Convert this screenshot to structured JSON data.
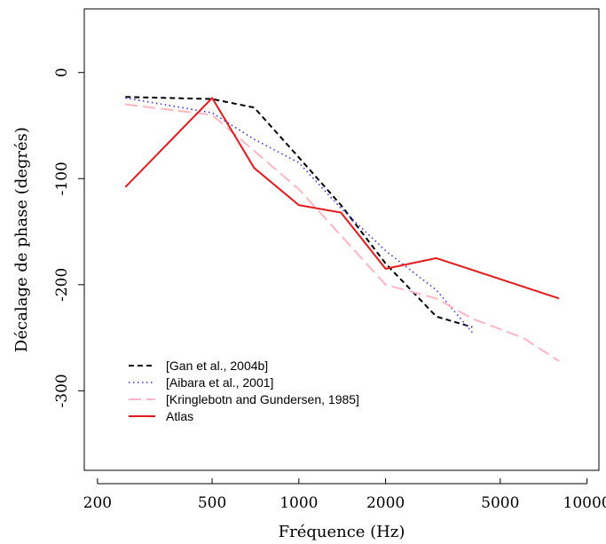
{
  "chart_data": {
    "type": "line",
    "title": "",
    "xlabel": "Fréquence (Hz)",
    "ylabel": "Décalage de phase (degrés)",
    "x_scale": "log",
    "xlim": [
      180,
      11000
    ],
    "ylim": [
      -375,
      60
    ],
    "x_ticks": [
      200,
      500,
      1000,
      2000,
      5000,
      10000
    ],
    "x_tick_labels": [
      "200",
      "500",
      "1000",
      "2000",
      "5000",
      "10000"
    ],
    "y_ticks": [
      0,
      -100,
      -200,
      -300
    ],
    "y_tick_labels": [
      "0",
      "-100",
      "-200",
      "-300"
    ],
    "grid": false,
    "legend_position": "bottom-left",
    "series": [
      {
        "name": "[Gan et al., 2004b]",
        "color": "#000000",
        "line_style": "dashed",
        "x": [
          250,
          500,
          700,
          1000,
          1400,
          2000,
          3000,
          4000
        ],
        "y": [
          -23,
          -25,
          -33,
          -80,
          -125,
          -180,
          -230,
          -240
        ]
      },
      {
        "name": "[Aibara et al., 2001]",
        "color": "#3333ff",
        "line_style": "dotted",
        "x": [
          250,
          500,
          700,
          1000,
          1400,
          2000,
          3000,
          4000
        ],
        "y": [
          -24,
          -38,
          -63,
          -85,
          -128,
          -168,
          -205,
          -245
        ]
      },
      {
        "name": "[Kringlebotn and Gundersen, 1985]",
        "color": "#ffb6c1",
        "line_style": "longdash",
        "x": [
          250,
          500,
          1000,
          2000,
          3000,
          4000,
          6000,
          8000
        ],
        "y": [
          -30,
          -40,
          -110,
          -200,
          -213,
          -232,
          -250,
          -272
        ]
      },
      {
        "name": "Atlas",
        "color": "#e41a1c",
        "line_style": "solid",
        "x": [
          250,
          500,
          700,
          1000,
          1400,
          2000,
          3000,
          8000
        ],
        "y": [
          -108,
          -24,
          -90,
          -125,
          -132,
          -185,
          -175,
          -213
        ]
      }
    ]
  }
}
